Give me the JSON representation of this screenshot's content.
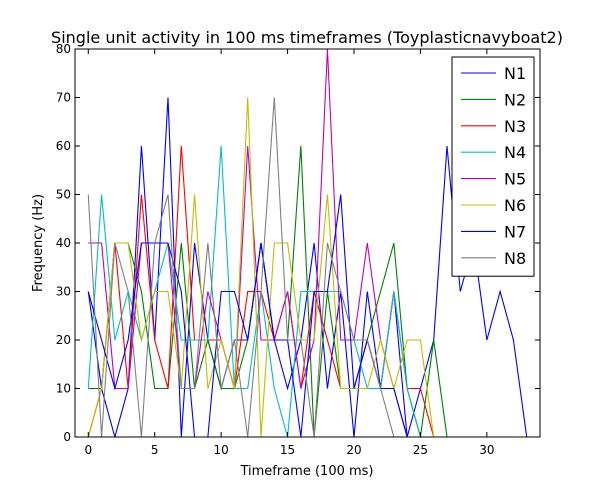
{
  "chart_data": {
    "type": "line",
    "title": "Single unit activity in 100 ms timeframes (Toyplasticnavyboat2)",
    "xlabel": "Timeframe (100 ms)",
    "ylabel": "Frequency (Hz)",
    "xlim": [
      -1,
      34
    ],
    "ylim": [
      0,
      80
    ],
    "xticks": [
      0,
      5,
      10,
      15,
      20,
      25,
      30
    ],
    "yticks": [
      0,
      10,
      20,
      30,
      40,
      50,
      60,
      70,
      80
    ],
    "legend_position": "top-right",
    "grid": false,
    "series": [
      {
        "name": "N1",
        "color": "#0000ff",
        "x": [
          0,
          1,
          2,
          3,
          4,
          5,
          6,
          7,
          8,
          9,
          10,
          11,
          12,
          13,
          14,
          15,
          16,
          17,
          18,
          19,
          20,
          21,
          22,
          23,
          24,
          25,
          26,
          27,
          28,
          29,
          30,
          31,
          32,
          33
        ],
        "y": [
          30,
          10,
          0,
          10,
          60,
          20,
          70,
          0,
          40,
          20,
          10,
          20,
          20,
          40,
          20,
          10,
          20,
          40,
          10,
          30,
          0,
          30,
          10,
          30,
          0,
          10,
          20,
          60,
          30,
          40,
          20,
          30,
          20,
          0
        ]
      },
      {
        "name": "N2",
        "color": "#008000",
        "x": [
          0,
          1,
          2,
          3,
          4,
          5,
          6,
          7,
          8,
          9,
          10,
          11,
          12,
          13,
          14,
          15,
          16,
          17,
          18,
          19,
          20,
          21,
          22,
          23,
          24,
          25,
          26,
          27,
          28,
          29,
          30,
          31,
          32,
          33
        ],
        "y": [
          10,
          10,
          40,
          40,
          30,
          10,
          10,
          40,
          10,
          20,
          10,
          10,
          20,
          40,
          20,
          20,
          60,
          0,
          30,
          10,
          10,
          20,
          30,
          40,
          10,
          0,
          20,
          0,
          0,
          0,
          0,
          0,
          0,
          0
        ]
      },
      {
        "name": "N3",
        "color": "#ff0000",
        "x": [
          0,
          1,
          2,
          3,
          4,
          5,
          6,
          7,
          8,
          9,
          10,
          11,
          12,
          13,
          14,
          15,
          16,
          17,
          18,
          19,
          20,
          21,
          22,
          23,
          24,
          25,
          26,
          27,
          28,
          29,
          30,
          31,
          32,
          33
        ],
        "y": [
          0,
          10,
          40,
          10,
          50,
          20,
          10,
          60,
          20,
          20,
          20,
          10,
          30,
          30,
          20,
          30,
          10,
          30,
          20,
          10,
          10,
          20,
          10,
          30,
          10,
          10,
          0,
          0,
          0,
          0,
          0,
          0,
          0,
          0
        ]
      },
      {
        "name": "N4",
        "color": "#00bfbf",
        "x": [
          0,
          1,
          2,
          3,
          4,
          5,
          6,
          7,
          8,
          9,
          10,
          11,
          12,
          13,
          14,
          15,
          16,
          17,
          18,
          19,
          20,
          21,
          22,
          23,
          24,
          25,
          26,
          27,
          28,
          29,
          30,
          31,
          32,
          33
        ],
        "y": [
          10,
          50,
          20,
          30,
          20,
          30,
          40,
          20,
          20,
          20,
          60,
          10,
          10,
          30,
          10,
          0,
          30,
          30,
          30,
          30,
          20,
          10,
          10,
          30,
          10,
          0,
          0,
          0,
          0,
          0,
          0,
          0,
          0,
          0
        ]
      },
      {
        "name": "N5",
        "color": "#bf00bf",
        "x": [
          0,
          1,
          2,
          3,
          4,
          5,
          6,
          7,
          8,
          9,
          10,
          11,
          12,
          13,
          14,
          15,
          16,
          17,
          18,
          19,
          20,
          21,
          22,
          23,
          24,
          25,
          26,
          27,
          28,
          29,
          30,
          31,
          32,
          33
        ],
        "y": [
          40,
          40,
          10,
          10,
          40,
          40,
          40,
          10,
          10,
          30,
          20,
          10,
          60,
          20,
          20,
          30,
          10,
          20,
          80,
          20,
          20,
          40,
          20,
          10,
          0,
          0,
          0,
          0,
          0,
          0,
          0,
          0,
          0,
          0
        ]
      },
      {
        "name": "N6",
        "color": "#bfbf00",
        "x": [
          0,
          1,
          2,
          3,
          4,
          5,
          6,
          7,
          8,
          9,
          10,
          11,
          12,
          13,
          14,
          15,
          16,
          17,
          18,
          19,
          20,
          21,
          22,
          23,
          24,
          25,
          26,
          27,
          28,
          29,
          30,
          31,
          32,
          33
        ],
        "y": [
          0,
          10,
          40,
          40,
          20,
          30,
          30,
          10,
          50,
          10,
          20,
          10,
          70,
          0,
          40,
          40,
          20,
          20,
          50,
          10,
          10,
          10,
          20,
          10,
          20,
          20,
          0,
          0,
          0,
          0,
          0,
          0,
          0,
          0
        ]
      },
      {
        "name": "N7",
        "color": "#0000ff",
        "x": [
          0,
          1,
          2,
          3,
          4,
          5,
          6,
          7,
          8,
          9,
          10,
          11,
          12,
          13,
          14,
          15,
          16,
          17,
          18,
          19,
          20,
          21,
          22,
          23,
          24,
          25,
          26,
          27,
          28,
          29,
          30,
          31,
          32,
          33
        ],
        "y": [
          30,
          20,
          10,
          20,
          40,
          40,
          40,
          30,
          0,
          0,
          30,
          30,
          20,
          40,
          20,
          20,
          0,
          30,
          30,
          50,
          10,
          20,
          10,
          10,
          0,
          0,
          0,
          0,
          0,
          0,
          0,
          0,
          0,
          0
        ]
      },
      {
        "name": "N8",
        "color": "#808080",
        "x": [
          0,
          1,
          2,
          3,
          4,
          5,
          6,
          7,
          8,
          9,
          10,
          11,
          12,
          13,
          14,
          15,
          16,
          17,
          18,
          19,
          20,
          21,
          22,
          23,
          24,
          25,
          26,
          27,
          28,
          29,
          30,
          31,
          32,
          33
        ],
        "y": [
          50,
          0,
          40,
          30,
          0,
          40,
          50,
          10,
          10,
          40,
          10,
          20,
          0,
          30,
          70,
          20,
          20,
          0,
          40,
          30,
          20,
          20,
          10,
          0,
          0,
          0,
          0,
          0,
          0,
          0,
          0,
          0,
          0,
          0
        ]
      }
    ]
  }
}
